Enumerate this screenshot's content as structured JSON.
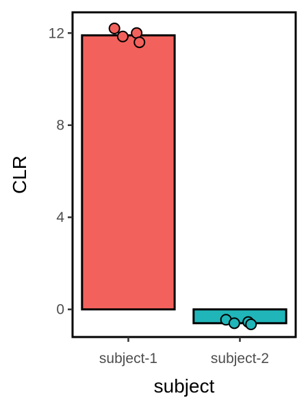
{
  "chart_data": {
    "type": "bar",
    "xlabel": "subject",
    "ylabel": "CLR",
    "categories": [
      "subject-1",
      "subject-2"
    ],
    "values": [
      11.9,
      -0.6
    ],
    "colors": [
      "#F3615C",
      "#20B5B8"
    ],
    "points": [
      [
        12.2,
        12.0,
        11.85,
        11.6
      ],
      [
        -0.45,
        -0.55,
        -0.6,
        -0.65
      ]
    ],
    "y_ticks": [
      0,
      4,
      8,
      12
    ],
    "ylim": [
      -1.2,
      12.9
    ],
    "grid": false,
    "legend": "none"
  }
}
